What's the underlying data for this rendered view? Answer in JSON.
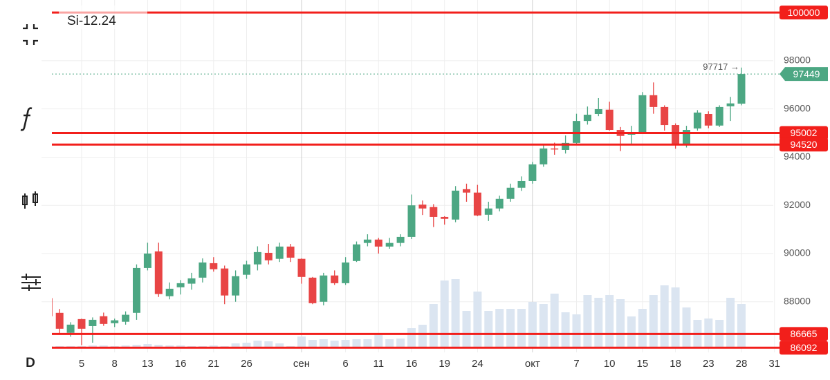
{
  "chart_data": {
    "type": "candlestick",
    "title": "Si-12.24",
    "interval": "D",
    "categories": [
      null,
      null,
      null,
      "5",
      null,
      null,
      "8",
      null,
      null,
      "13",
      null,
      null,
      "16",
      null,
      null,
      "21",
      null,
      null,
      "26",
      null,
      null,
      null,
      null,
      "сен",
      null,
      null,
      null,
      "6",
      null,
      null,
      "11",
      null,
      null,
      "16",
      null,
      null,
      "19",
      null,
      null,
      "24",
      null,
      null,
      null,
      null,
      "окт",
      null,
      null,
      null,
      "7",
      null,
      null,
      "10",
      null,
      null,
      "15",
      null,
      null,
      "18",
      null,
      null,
      "23",
      null,
      null,
      "28",
      null,
      null,
      "31"
    ],
    "open": [
      88150,
      87540,
      86710,
      87280,
      86990,
      87400,
      87110,
      87170,
      87540,
      89400,
      90090,
      88230,
      88600,
      88750,
      89000,
      89600,
      89380,
      88260,
      89120,
      89550,
      90030,
      89780,
      90290,
      89780,
      89000,
      88000,
      89090,
      88770,
      89690,
      90440,
      90580,
      90290,
      90440,
      90690,
      92030,
      91930,
      91520,
      91410,
      92670,
      92530,
      91610,
      91870,
      92270,
      92730,
      93010,
      93700,
      94360,
      94300,
      94590,
      95500,
      95790,
      95970,
      95130,
      94930,
      95020,
      96570,
      96080,
      95330,
      94500,
      95190,
      95790,
      95310,
      96110,
      96220,
      null,
      null,
      null
    ],
    "high": [
      88200,
      87700,
      87150,
      87300,
      87350,
      87550,
      87300,
      87600,
      89550,
      90450,
      90450,
      88800,
      88900,
      89200,
      89800,
      89850,
      89500,
      89300,
      89700,
      90300,
      90400,
      90450,
      90400,
      89800,
      89030,
      89200,
      89300,
      89850,
      90500,
      90800,
      90650,
      90650,
      90800,
      92450,
      92200,
      92050,
      91550,
      92800,
      92900,
      92850,
      92150,
      92400,
      92900,
      93200,
      93800,
      94550,
      94600,
      94900,
      95800,
      96100,
      96450,
      96300,
      95250,
      95300,
      96700,
      97100,
      96150,
      95400,
      95300,
      95950,
      95900,
      96150,
      96500,
      97717,
      null,
      null,
      null
    ],
    "low": [
      87350,
      86700,
      86550,
      86200,
      86300,
      87000,
      86950,
      87050,
      87250,
      89300,
      88200,
      88100,
      88300,
      88500,
      88800,
      89250,
      87900,
      88000,
      88950,
      89300,
      89550,
      89650,
      89650,
      88750,
      87900,
      87850,
      88700,
      88700,
      89650,
      90300,
      90000,
      90200,
      90300,
      90600,
      91600,
      91100,
      91200,
      91300,
      92150,
      91550,
      91350,
      91750,
      92150,
      92600,
      92900,
      93600,
      94100,
      94150,
      94500,
      95350,
      95700,
      95100,
      94250,
      94500,
      95000,
      95800,
      95100,
      94350,
      94400,
      95100,
      95200,
      95250,
      95500,
      96150,
      null,
      null,
      null
    ],
    "close": [
      87400,
      86880,
      87050,
      86880,
      87250,
      87080,
      87230,
      87460,
      89400,
      90000,
      88320,
      88540,
      88770,
      88970,
      89630,
      89350,
      88260,
      89060,
      89550,
      90060,
      89720,
      90290,
      89830,
      89030,
      87940,
      89090,
      88770,
      89630,
      90380,
      90580,
      90290,
      90440,
      90690,
      92000,
      91870,
      91520,
      91440,
      92610,
      92530,
      91580,
      91870,
      92270,
      92730,
      93010,
      93700,
      94360,
      94330,
      94590,
      95500,
      95760,
      95990,
      95130,
      94880,
      95020,
      96570,
      96080,
      95330,
      94500,
      95130,
      95850,
      95310,
      96080,
      96230,
      97449,
      null,
      null,
      null
    ],
    "volume": [
      2,
      2,
      2,
      2,
      3,
      3,
      2,
      3,
      4,
      5,
      4,
      3,
      3,
      2,
      2,
      3,
      2,
      6,
      7,
      10,
      9,
      6,
      2,
      16,
      11,
      12,
      10,
      11,
      12,
      12,
      18,
      12,
      13,
      28,
      33,
      63,
      97,
      99,
      53,
      81,
      53,
      56,
      56,
      56,
      66,
      63,
      78,
      51,
      48,
      76,
      72,
      76,
      70,
      45,
      56,
      76,
      90,
      87,
      58,
      40,
      42,
      40,
      72,
      63,
      null,
      null,
      null
    ],
    "volume_lim": [
      0,
      250
    ],
    "up_color": "#4ca783",
    "down_color": "#e84545",
    "volume_color": "#dbe5f1",
    "ylim": [
      85900,
      100520
    ],
    "yticks": [
      88000,
      90000,
      92000,
      94000,
      96000,
      98000
    ],
    "grid": true,
    "levels": [
      100000,
      95002,
      94520,
      86665,
      86092
    ],
    "level_color": "#f21f1b",
    "last_price": 97449,
    "high_marker": {
      "value": 97717,
      "label": "97717 →"
    }
  }
}
